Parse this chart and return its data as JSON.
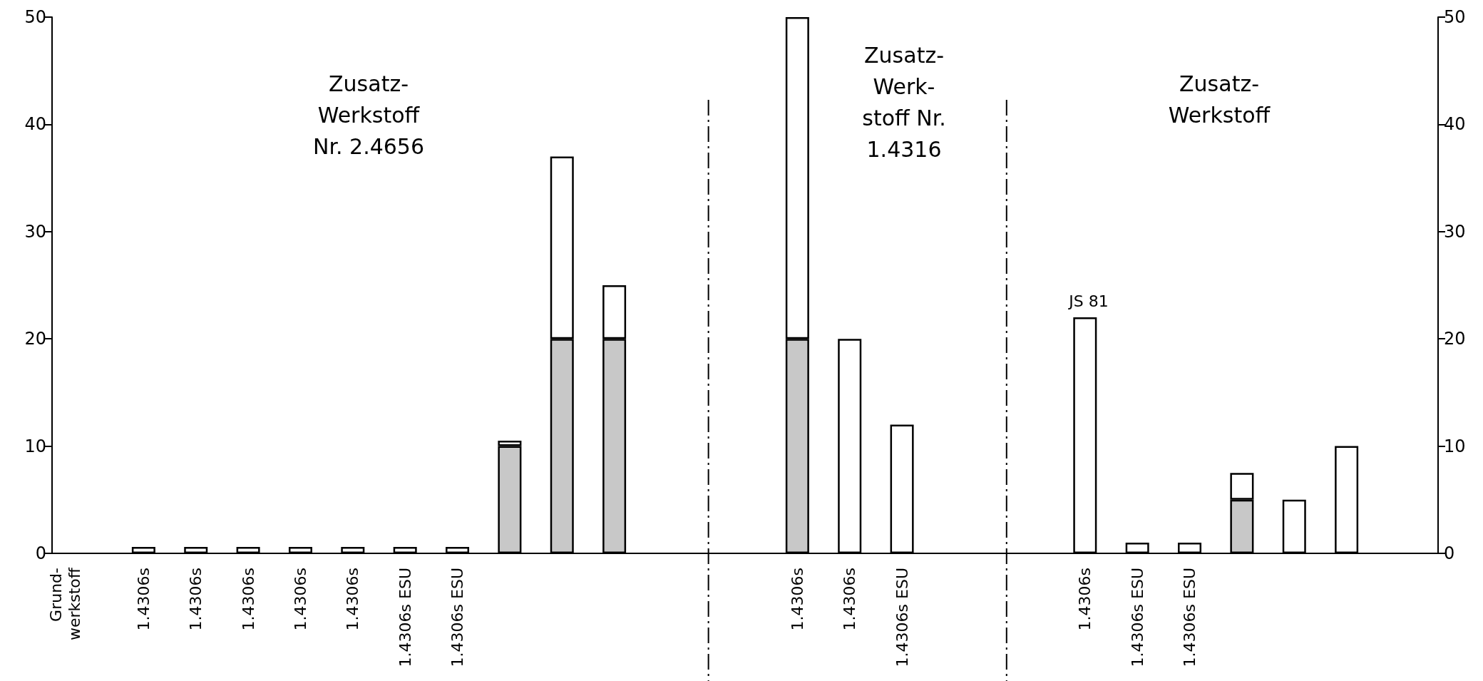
{
  "chart_data": {
    "type": "bar",
    "stacked": true,
    "categories": [
      "Grund-\nwerkstoff",
      null,
      null,
      "1.4306s",
      null,
      "1.4306s",
      null,
      "1.4306s",
      null,
      "1.4306s",
      null,
      "1.4306s",
      null,
      "1.4306s ESU",
      null,
      "1.4306s ESU",
      null,
      null,
      null,
      null,
      null,
      null,
      null,
      null,
      null,
      null,
      null,
      null,
      "1.4306s",
      null,
      "1.4306s",
      null,
      "1.4306s ESU",
      null,
      null,
      null,
      null,
      null,
      null,
      "1.4306s",
      null,
      "1.4306s ESU",
      null,
      "1.4306s ESU",
      null,
      null,
      null,
      null,
      null,
      null,
      null,
      null,
      null
    ],
    "series": [
      {
        "color": "#c8c8c8",
        "values": [
          null,
          null,
          null,
          null,
          null,
          null,
          null,
          null,
          null,
          null,
          null,
          null,
          null,
          null,
          null,
          null,
          null,
          10,
          null,
          20,
          null,
          20,
          null,
          null,
          null,
          null,
          null,
          null,
          20,
          null,
          null,
          null,
          null,
          null,
          null,
          null,
          null,
          null,
          null,
          null,
          null,
          null,
          null,
          null,
          null,
          5,
          null,
          null,
          null,
          null,
          null,
          null,
          null
        ]
      },
      {
        "color": "#ffffff",
        "values": [
          null,
          null,
          null,
          0.6,
          null,
          0.6,
          null,
          0.6,
          null,
          0.6,
          null,
          0.6,
          null,
          0.6,
          null,
          0.6,
          null,
          0.5,
          null,
          17,
          null,
          5,
          null,
          null,
          null,
          null,
          null,
          null,
          30,
          null,
          20,
          null,
          12,
          null,
          null,
          null,
          null,
          null,
          null,
          22,
          null,
          1,
          null,
          1,
          null,
          2.5,
          null,
          5,
          null,
          10,
          null,
          null,
          null
        ]
      }
    ],
    "ylim": [
      0,
      50
    ],
    "yticks": [
      0,
      10,
      20,
      30,
      40,
      50
    ],
    "y2lim": [
      0,
      50
    ],
    "y2ticks": [
      0,
      10,
      20,
      30,
      40,
      50
    ],
    "annotations": [
      "Zusatz-\nWerkstoff\nNr. 2.4656",
      "Zusatz-\nWerk-\nstoff Nr.\n1.4316",
      "Zusatz-\nWerkstoff",
      "JS 81"
    ]
  }
}
